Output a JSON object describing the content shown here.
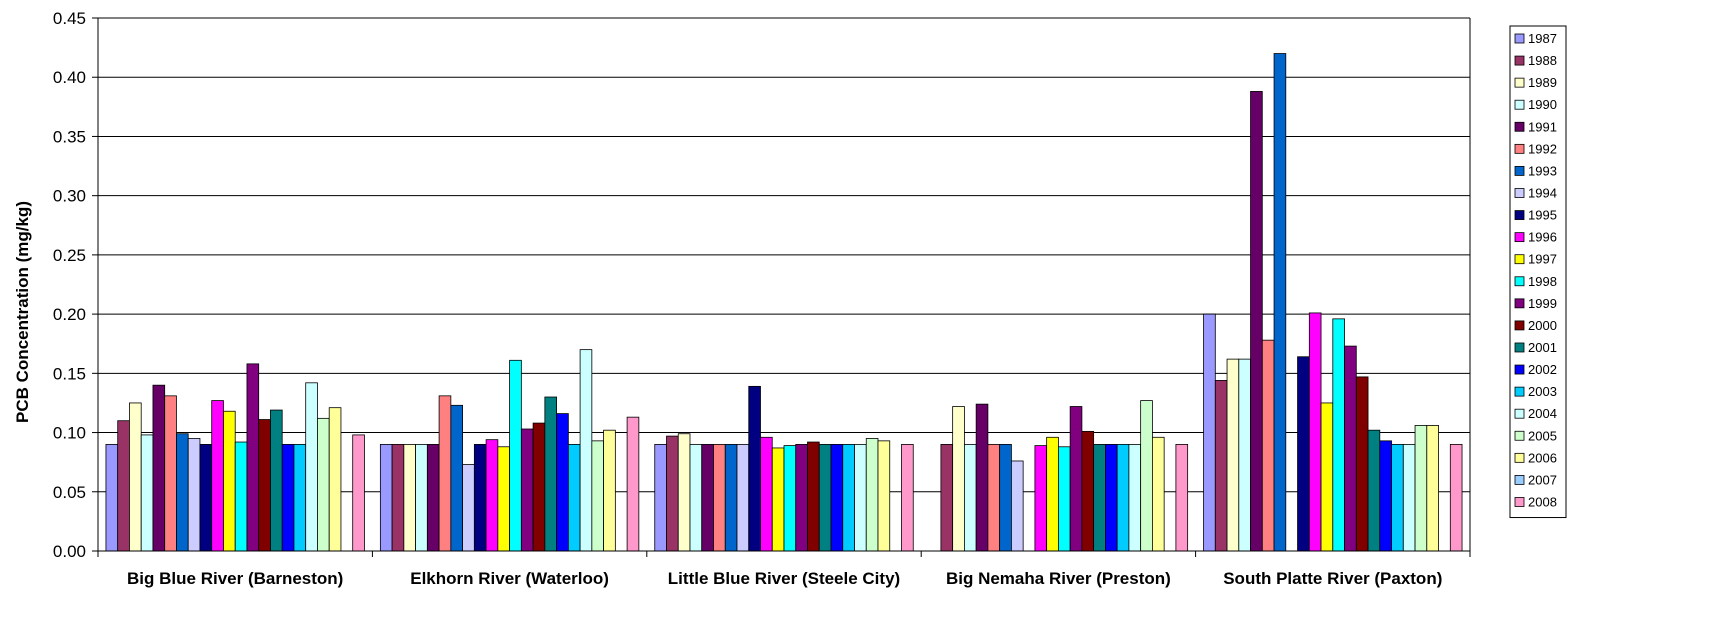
{
  "chart_data": {
    "type": "bar",
    "title": "",
    "xlabel": "",
    "ylabel": "PCB Concentration (mg/kg)",
    "ylim": [
      0,
      0.45
    ],
    "yticks": [
      "0.00",
      "0.05",
      "0.10",
      "0.15",
      "0.20",
      "0.25",
      "0.30",
      "0.35",
      "0.40",
      "0.45"
    ],
    "grid": true,
    "legend_position": "right",
    "categories": [
      "Big Blue River (Barneston)",
      "Elkhorn River (Waterloo)",
      "Little Blue River (Steele City)",
      "Big Nemaha River (Preston)",
      "South Platte River (Paxton)"
    ],
    "series": [
      {
        "name": "1987",
        "color": "#9999ff",
        "values": [
          0.09,
          0.09,
          0.09,
          null,
          0.2
        ]
      },
      {
        "name": "1988",
        "color": "#993366",
        "values": [
          0.11,
          0.09,
          0.097,
          0.09,
          0.144
        ]
      },
      {
        "name": "1989",
        "color": "#ffffcc",
        "values": [
          0.125,
          0.09,
          0.099,
          0.122,
          0.162
        ]
      },
      {
        "name": "1990",
        "color": "#ccffff",
        "values": [
          0.098,
          0.09,
          0.09,
          0.09,
          0.162
        ]
      },
      {
        "name": "1991",
        "color": "#660066",
        "values": [
          0.14,
          0.09,
          0.09,
          0.124,
          0.388
        ]
      },
      {
        "name": "1992",
        "color": "#ff8080",
        "values": [
          0.131,
          0.131,
          0.09,
          0.09,
          0.178
        ]
      },
      {
        "name": "1993",
        "color": "#0066cc",
        "values": [
          0.099,
          0.123,
          0.09,
          0.09,
          0.42
        ]
      },
      {
        "name": "1994",
        "color": "#ccccff",
        "values": [
          0.095,
          0.073,
          0.09,
          0.076,
          null
        ]
      },
      {
        "name": "1995",
        "color": "#000080",
        "values": [
          0.09,
          0.09,
          0.139,
          null,
          0.164
        ]
      },
      {
        "name": "1996",
        "color": "#ff00ff",
        "values": [
          0.127,
          0.094,
          0.096,
          0.089,
          0.201
        ]
      },
      {
        "name": "1997",
        "color": "#ffff00",
        "values": [
          0.118,
          0.088,
          0.087,
          0.096,
          0.125
        ]
      },
      {
        "name": "1998",
        "color": "#00ffff",
        "values": [
          0.092,
          0.161,
          0.089,
          0.088,
          0.196
        ]
      },
      {
        "name": "1999",
        "color": "#800080",
        "values": [
          0.158,
          0.103,
          0.09,
          0.122,
          0.173
        ]
      },
      {
        "name": "2000",
        "color": "#800000",
        "values": [
          0.111,
          0.108,
          0.092,
          0.101,
          0.147
        ]
      },
      {
        "name": "2001",
        "color": "#008080",
        "values": [
          0.119,
          0.13,
          0.09,
          0.09,
          0.102
        ]
      },
      {
        "name": "2002",
        "color": "#0000ff",
        "values": [
          0.09,
          0.116,
          0.09,
          0.09,
          0.093
        ]
      },
      {
        "name": "2003",
        "color": "#00ccff",
        "values": [
          0.09,
          0.09,
          0.09,
          0.09,
          0.09
        ]
      },
      {
        "name": "2004",
        "color": "#ccffff",
        "values": [
          0.142,
          0.17,
          0.09,
          0.09,
          0.09
        ]
      },
      {
        "name": "2005",
        "color": "#ccffcc",
        "values": [
          0.112,
          0.093,
          0.095,
          0.127,
          0.106
        ]
      },
      {
        "name": "2006",
        "color": "#ffff99",
        "values": [
          0.121,
          0.102,
          0.093,
          0.096,
          0.106
        ]
      },
      {
        "name": "2007",
        "color": "#99ccff",
        "values": [
          null,
          null,
          null,
          null,
          null
        ]
      },
      {
        "name": "2008",
        "color": "#ff99cc",
        "values": [
          0.098,
          0.113,
          0.09,
          0.09,
          0.09
        ]
      }
    ]
  }
}
